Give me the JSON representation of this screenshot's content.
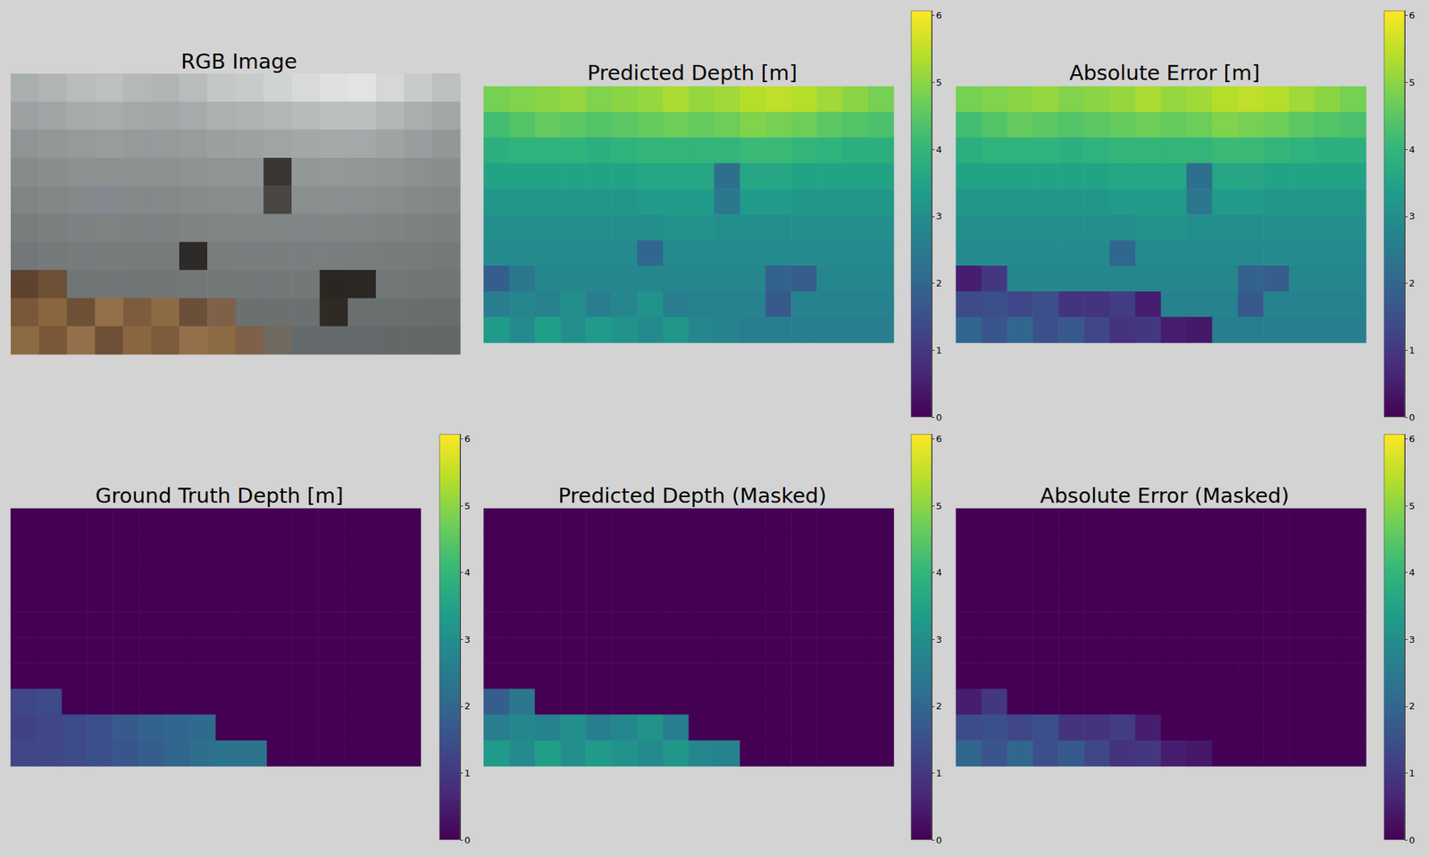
{
  "chart_data": [
    {
      "type": "image",
      "title": "RGB Image",
      "colors": [
        [
          "#a9aeaf",
          "#b0b4b5",
          "#b8bcbd",
          "#bcc0c1",
          "#b4b8b9",
          "#b0b4b5",
          "#b8bcbc",
          "#c4c7c8",
          "#c8cbcb",
          "#d0d3d3",
          "#d8dada",
          "#dfe1e1",
          "#e2e4e4",
          "#d6d8d8",
          "#c8cbcb",
          "#bcc0c0"
        ],
        [
          "#9ca1a2",
          "#a0a5a6",
          "#a6aaab",
          "#a8acad",
          "#a4a8a9",
          "#a2a6a7",
          "#a6aaab",
          "#acb0b1",
          "#aeb2b3",
          "#b2b6b6",
          "#b8bbbc",
          "#bcbfc0",
          "#bcbfc0",
          "#b4b7b8",
          "#aaaeaf",
          "#a2a6a7"
        ],
        [
          "#8f9495",
          "#929798",
          "#969a9b",
          "#989c9d",
          "#969a9b",
          "#959a9b",
          "#989c9d",
          "#9b9fa0",
          "#9da1a2",
          "#a0a4a5",
          "#a3a7a8",
          "#a5a9aa",
          "#a4a8a9",
          "#9fa3a4",
          "#999d9e",
          "#939798"
        ],
        [
          "#868b8c",
          "#888d8e",
          "#8b9091",
          "#8c9192",
          "#8b9091",
          "#8b9091",
          "#8d9293",
          "#8f9495",
          "#909596",
          "#3a3633",
          "#929798",
          "#939899",
          "#929798",
          "#8f9495",
          "#8b9091",
          "#888d8e"
        ],
        [
          "#7f8485",
          "#818687",
          "#838889",
          "#848990",
          "#838889",
          "#838889",
          "#858a8b",
          "#878c8d",
          "#888d8e",
          "#4a4643",
          "#898e8f",
          "#8a8f90",
          "#898e8f",
          "#878c8d",
          "#84898a",
          "#818687"
        ],
        [
          "#787d7e",
          "#7a7f80",
          "#7c8182",
          "#7d8283",
          "#7c8182",
          "#7c8182",
          "#7e8384",
          "#7f8485",
          "#808586",
          "#7f8485",
          "#808586",
          "#808586",
          "#7f8485",
          "#7e8384",
          "#7c8182",
          "#7a7f80"
        ],
        [
          "#72777a",
          "#74797a",
          "#767b7c",
          "#777c7d",
          "#767b7c",
          "#767b7c",
          "#2e2a27",
          "#787d7e",
          "#797e7f",
          "#797e7f",
          "#797e7f",
          "#797e7f",
          "#787d7e",
          "#777c7d",
          "#767b7c",
          "#74797a"
        ],
        [
          "#5e4430",
          "#6e5036",
          "#707576",
          "#717677",
          "#707576",
          "#717677",
          "#727778",
          "#737879",
          "#737879",
          "#737879",
          "#737879",
          "#2a2622",
          "#2c2723",
          "#727778",
          "#717677",
          "#707576"
        ],
        [
          "#7a5738",
          "#8a6640",
          "#6e5036",
          "#94704a",
          "#7d5c3c",
          "#8c6a44",
          "#6a5038",
          "#7f6048",
          "#6b7071",
          "#6b7071",
          "#6b7071",
          "#302a25",
          "#6a6f70",
          "#6a6f70",
          "#696e6f",
          "#686d6e"
        ],
        [
          "#8c6a44",
          "#7a5738",
          "#94704a",
          "#6e5036",
          "#8a6640",
          "#7d5c3c",
          "#94704a",
          "#8c6a44",
          "#7f6048",
          "#706a60",
          "#646a6b",
          "#646a6b",
          "#646a6b",
          "#636869",
          "#636869",
          "#626768"
        ]
      ]
    },
    {
      "type": "heatmap",
      "title": "Predicted Depth [m]",
      "cells": [
        [
          4.8,
          4.9,
          5.0,
          5.1,
          4.9,
          5.0,
          5.1,
          5.3,
          5.1,
          5.2,
          5.4,
          5.5,
          5.4,
          5.2,
          5.0,
          4.8
        ],
        [
          4.2,
          4.4,
          4.6,
          4.5,
          4.4,
          4.5,
          4.6,
          4.7,
          4.6,
          4.7,
          4.9,
          4.8,
          4.7,
          4.5,
          4.4,
          4.3
        ],
        [
          3.8,
          3.9,
          3.9,
          3.9,
          3.8,
          3.9,
          4.0,
          4.0,
          4.0,
          4.0,
          4.1,
          4.1,
          4.0,
          3.9,
          3.8,
          3.8
        ],
        [
          3.5,
          3.5,
          3.5,
          3.5,
          3.5,
          3.5,
          3.6,
          3.6,
          3.6,
          2.2,
          3.6,
          3.6,
          3.5,
          3.5,
          3.5,
          3.5
        ],
        [
          3.2,
          3.2,
          3.2,
          3.2,
          3.2,
          3.2,
          3.3,
          3.3,
          3.3,
          2.4,
          3.3,
          3.3,
          3.2,
          3.2,
          3.2,
          3.2
        ],
        [
          3.0,
          3.0,
          3.0,
          3.0,
          3.0,
          3.0,
          3.0,
          3.1,
          3.1,
          3.0,
          3.0,
          3.0,
          3.0,
          3.0,
          3.0,
          3.0
        ],
        [
          2.9,
          2.9,
          2.9,
          2.9,
          2.9,
          2.9,
          2.0,
          2.9,
          2.9,
          2.9,
          2.9,
          2.9,
          2.9,
          2.9,
          2.9,
          2.9
        ],
        [
          1.8,
          2.4,
          2.8,
          2.8,
          2.8,
          2.8,
          2.8,
          2.8,
          2.8,
          2.8,
          2.8,
          1.9,
          1.8,
          2.8,
          2.8,
          2.8
        ],
        [
          2.6,
          2.8,
          2.7,
          3.0,
          2.6,
          2.8,
          3.1,
          2.6,
          2.7,
          2.7,
          2.7,
          1.7,
          2.7,
          2.7,
          2.7,
          2.7
        ],
        [
          3.3,
          2.9,
          3.4,
          3.0,
          3.3,
          3.1,
          2.9,
          3.2,
          2.8,
          2.7,
          2.6,
          2.6,
          2.6,
          2.6,
          2.6,
          2.6
        ]
      ],
      "colorbar": {
        "range": [
          0,
          6.07
        ],
        "ticks": [
          0,
          1,
          2,
          3,
          4,
          5,
          6
        ]
      }
    },
    {
      "type": "heatmap",
      "title": "Absolute Error [m]",
      "cells": [
        [
          4.8,
          4.9,
          5.0,
          5.1,
          4.9,
          5.0,
          5.1,
          5.3,
          5.1,
          5.2,
          5.4,
          5.5,
          5.4,
          5.2,
          5.0,
          4.8
        ],
        [
          4.2,
          4.4,
          4.6,
          4.5,
          4.4,
          4.5,
          4.6,
          4.7,
          4.6,
          4.7,
          4.9,
          4.8,
          4.7,
          4.5,
          4.4,
          4.3
        ],
        [
          3.8,
          3.9,
          3.9,
          3.9,
          3.8,
          3.9,
          4.0,
          4.0,
          4.0,
          4.0,
          4.1,
          4.1,
          4.0,
          3.9,
          3.8,
          3.8
        ],
        [
          3.5,
          3.5,
          3.5,
          3.5,
          3.5,
          3.5,
          3.6,
          3.6,
          3.6,
          2.2,
          3.6,
          3.6,
          3.5,
          3.5,
          3.5,
          3.5
        ],
        [
          3.2,
          3.2,
          3.2,
          3.2,
          3.2,
          3.2,
          3.3,
          3.3,
          3.3,
          2.4,
          3.3,
          3.3,
          3.2,
          3.2,
          3.2,
          3.2
        ],
        [
          3.0,
          3.0,
          3.0,
          3.0,
          3.0,
          3.0,
          3.0,
          3.1,
          3.1,
          3.0,
          3.0,
          3.0,
          3.0,
          3.0,
          3.0,
          3.0
        ],
        [
          2.9,
          2.9,
          2.9,
          2.9,
          2.9,
          2.9,
          2.0,
          2.9,
          2.9,
          2.9,
          2.9,
          2.9,
          2.9,
          2.9,
          2.9,
          2.9
        ],
        [
          0.5,
          1.0,
          2.8,
          2.8,
          2.8,
          2.8,
          2.8,
          2.8,
          2.8,
          2.8,
          2.8,
          1.9,
          1.8,
          2.8,
          2.8,
          2.8
        ],
        [
          1.4,
          1.5,
          1.3,
          1.5,
          0.9,
          0.9,
          1.1,
          0.5,
          2.7,
          2.7,
          2.7,
          1.7,
          2.7,
          2.7,
          2.7,
          2.7
        ],
        [
          2.0,
          1.6,
          2.0,
          1.5,
          1.7,
          1.3,
          0.9,
          1.0,
          0.5,
          0.4,
          2.6,
          2.6,
          2.6,
          2.6,
          2.6,
          2.6
        ]
      ],
      "colorbar": {
        "range": [
          0,
          6.07
        ],
        "ticks": [
          0,
          1,
          2,
          3,
          4,
          5,
          6
        ]
      }
    },
    {
      "type": "heatmap",
      "title": "Ground Truth Depth [m]",
      "cells": [
        [
          0,
          0,
          0,
          0,
          0,
          0,
          0,
          0,
          0,
          0,
          0,
          0,
          0,
          0,
          0,
          0
        ],
        [
          0,
          0,
          0,
          0,
          0,
          0,
          0,
          0,
          0,
          0,
          0,
          0,
          0,
          0,
          0,
          0
        ],
        [
          0,
          0,
          0,
          0,
          0,
          0,
          0,
          0,
          0,
          0,
          0,
          0,
          0,
          0,
          0,
          0
        ],
        [
          0,
          0,
          0,
          0,
          0,
          0,
          0,
          0,
          0,
          0,
          0,
          0,
          0,
          0,
          0,
          0
        ],
        [
          0,
          0,
          0,
          0,
          0,
          0,
          0,
          0,
          0,
          0,
          0,
          0,
          0,
          0,
          0,
          0
        ],
        [
          0,
          0,
          0,
          0,
          0,
          0,
          0,
          0,
          0,
          0,
          0,
          0,
          0,
          0,
          0,
          0
        ],
        [
          0,
          0,
          0,
          0,
          0,
          0,
          0,
          0,
          0,
          0,
          0,
          0,
          0,
          0,
          0,
          0
        ],
        [
          1.3,
          1.4,
          0,
          0,
          0,
          0,
          0,
          0,
          0,
          0,
          0,
          0,
          0,
          0,
          0,
          0
        ],
        [
          1.2,
          1.3,
          1.4,
          1.5,
          1.7,
          1.9,
          2.0,
          2.1,
          0,
          0,
          0,
          0,
          0,
          0,
          0,
          0
        ],
        [
          1.3,
          1.3,
          1.4,
          1.5,
          1.6,
          1.8,
          2.0,
          2.2,
          2.3,
          2.3,
          0,
          0,
          0,
          0,
          0,
          0
        ]
      ],
      "colorbar": {
        "range": [
          0,
          6.07
        ],
        "ticks": [
          0,
          1,
          2,
          3,
          4,
          5,
          6
        ]
      }
    },
    {
      "type": "heatmap",
      "title": "Predicted Depth (Masked)",
      "cells": [
        [
          0,
          0,
          0,
          0,
          0,
          0,
          0,
          0,
          0,
          0,
          0,
          0,
          0,
          0,
          0,
          0
        ],
        [
          0,
          0,
          0,
          0,
          0,
          0,
          0,
          0,
          0,
          0,
          0,
          0,
          0,
          0,
          0,
          0
        ],
        [
          0,
          0,
          0,
          0,
          0,
          0,
          0,
          0,
          0,
          0,
          0,
          0,
          0,
          0,
          0,
          0
        ],
        [
          0,
          0,
          0,
          0,
          0,
          0,
          0,
          0,
          0,
          0,
          0,
          0,
          0,
          0,
          0,
          0
        ],
        [
          0,
          0,
          0,
          0,
          0,
          0,
          0,
          0,
          0,
          0,
          0,
          0,
          0,
          0,
          0,
          0
        ],
        [
          0,
          0,
          0,
          0,
          0,
          0,
          0,
          0,
          0,
          0,
          0,
          0,
          0,
          0,
          0,
          0
        ],
        [
          0,
          0,
          0,
          0,
          0,
          0,
          0,
          0,
          0,
          0,
          0,
          0,
          0,
          0,
          0,
          0
        ],
        [
          1.8,
          2.4,
          0,
          0,
          0,
          0,
          0,
          0,
          0,
          0,
          0,
          0,
          0,
          0,
          0,
          0
        ],
        [
          2.6,
          2.8,
          2.7,
          3.0,
          2.6,
          2.8,
          3.1,
          2.6,
          0,
          0,
          0,
          0,
          0,
          0,
          0,
          0
        ],
        [
          3.3,
          2.9,
          3.4,
          3.0,
          3.3,
          3.1,
          2.9,
          3.2,
          2.8,
          2.7,
          0,
          0,
          0,
          0,
          0,
          0
        ]
      ],
      "colorbar": {
        "range": [
          0,
          6.07
        ],
        "ticks": [
          0,
          1,
          2,
          3,
          4,
          5,
          6
        ]
      }
    },
    {
      "type": "heatmap",
      "title": "Absolute Error (Masked)",
      "cells": [
        [
          0,
          0,
          0,
          0,
          0,
          0,
          0,
          0,
          0,
          0,
          0,
          0,
          0,
          0,
          0,
          0
        ],
        [
          0,
          0,
          0,
          0,
          0,
          0,
          0,
          0,
          0,
          0,
          0,
          0,
          0,
          0,
          0,
          0
        ],
        [
          0,
          0,
          0,
          0,
          0,
          0,
          0,
          0,
          0,
          0,
          0,
          0,
          0,
          0,
          0,
          0
        ],
        [
          0,
          0,
          0,
          0,
          0,
          0,
          0,
          0,
          0,
          0,
          0,
          0,
          0,
          0,
          0,
          0
        ],
        [
          0,
          0,
          0,
          0,
          0,
          0,
          0,
          0,
          0,
          0,
          0,
          0,
          0,
          0,
          0,
          0
        ],
        [
          0,
          0,
          0,
          0,
          0,
          0,
          0,
          0,
          0,
          0,
          0,
          0,
          0,
          0,
          0,
          0
        ],
        [
          0,
          0,
          0,
          0,
          0,
          0,
          0,
          0,
          0,
          0,
          0,
          0,
          0,
          0,
          0,
          0
        ],
        [
          0.5,
          1.0,
          0,
          0,
          0,
          0,
          0,
          0,
          0,
          0,
          0,
          0,
          0,
          0,
          0,
          0
        ],
        [
          1.4,
          1.5,
          1.3,
          1.5,
          0.9,
          0.9,
          1.1,
          0.5,
          0,
          0,
          0,
          0,
          0,
          0,
          0,
          0
        ],
        [
          2.0,
          1.6,
          2.0,
          1.5,
          1.7,
          1.3,
          0.9,
          1.0,
          0.5,
          0.4,
          0,
          0,
          0,
          0,
          0,
          0
        ]
      ],
      "colorbar": {
        "range": [
          0,
          6.07
        ],
        "ticks": [
          0,
          1,
          2,
          3,
          4,
          5,
          6
        ]
      }
    }
  ]
}
